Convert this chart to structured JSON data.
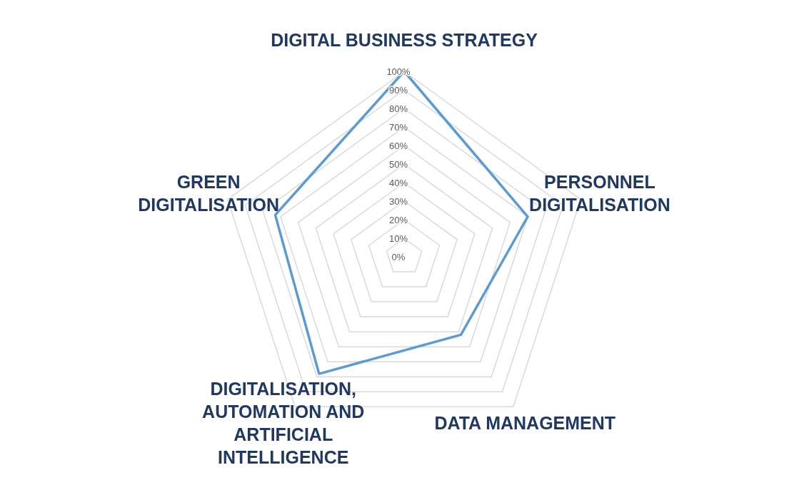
{
  "chart_data": {
    "type": "radar",
    "categories": [
      "DIGITAL BUSINESS STRATEGY",
      "PERSONNEL DIGITALISATION",
      "DATA MANAGEMENT",
      "DIGITALISATION, AUTOMATION AND ARTIFICIAL INTELLIGENCE",
      "GREEN DIGITALISATION"
    ],
    "series": [
      {
        "color": "#5b9bd5",
        "values": [
          100,
          70,
          52,
          78,
          73
        ]
      }
    ],
    "ylim": [
      0,
      100
    ],
    "yticks": [
      {
        "value": 0,
        "label": "0%"
      },
      {
        "value": 10,
        "label": "10%"
      },
      {
        "value": 20,
        "label": "20%"
      },
      {
        "value": 30,
        "label": "30%"
      },
      {
        "value": 40,
        "label": "40%"
      },
      {
        "value": 50,
        "label": "50%"
      },
      {
        "value": 60,
        "label": "60%"
      },
      {
        "value": 70,
        "label": "70%"
      },
      {
        "value": 80,
        "label": "80%"
      },
      {
        "value": 90,
        "label": "90%"
      },
      {
        "value": 100,
        "label": "100%"
      }
    ],
    "grid": true,
    "marker": "none",
    "line_style": "solid"
  }
}
